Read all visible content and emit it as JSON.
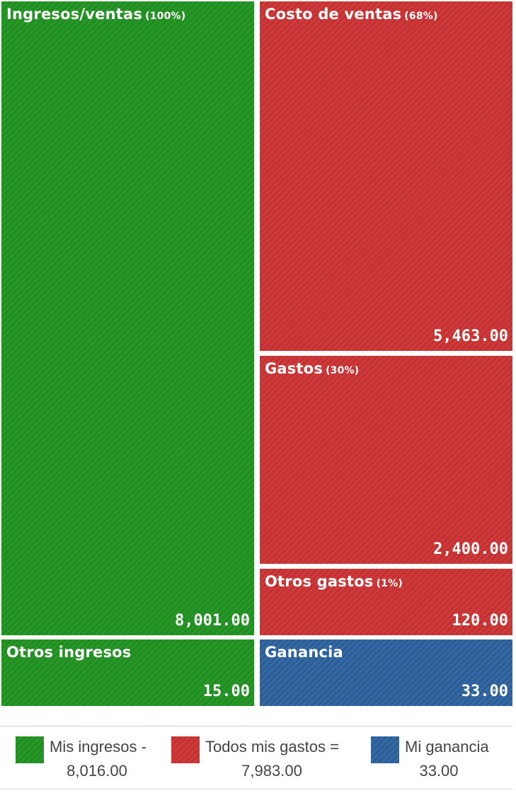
{
  "chart_data": {
    "type": "treemap",
    "colors": {
      "income": "#1f8f1f",
      "expense": "#c73131",
      "profit": "#2a5f9a"
    },
    "tiles": [
      {
        "id": "ingresos-ventas",
        "label": "Ingresos/ventas",
        "pct": "(100%)",
        "value": 8001.0,
        "value_label": "8,001.00",
        "group": "income"
      },
      {
        "id": "otros-ingresos",
        "label": "Otros ingresos",
        "pct": "",
        "value": 15.0,
        "value_label": "15.00",
        "group": "income"
      },
      {
        "id": "costo-ventas",
        "label": "Costo de ventas",
        "pct": "(68%)",
        "value": 5463.0,
        "value_label": "5,463.00",
        "group": "expense"
      },
      {
        "id": "gastos",
        "label": "Gastos",
        "pct": "(30%)",
        "value": 2400.0,
        "value_label": "2,400.00",
        "group": "expense"
      },
      {
        "id": "otros-gastos",
        "label": "Otros gastos",
        "pct": "(1%)",
        "value": 120.0,
        "value_label": "120.00",
        "group": "expense"
      },
      {
        "id": "ganancia",
        "label": "Ganancia",
        "pct": "",
        "value": 33.0,
        "value_label": "33.00",
        "group": "profit"
      }
    ]
  },
  "legend": [
    {
      "label": "Mis ingresos -",
      "value": "8,016.00",
      "group": "income"
    },
    {
      "label": "Todos mis gastos =",
      "value": "7,983.00",
      "group": "expense"
    },
    {
      "label": "Mi ganancia",
      "value": "33.00",
      "group": "profit"
    }
  ]
}
